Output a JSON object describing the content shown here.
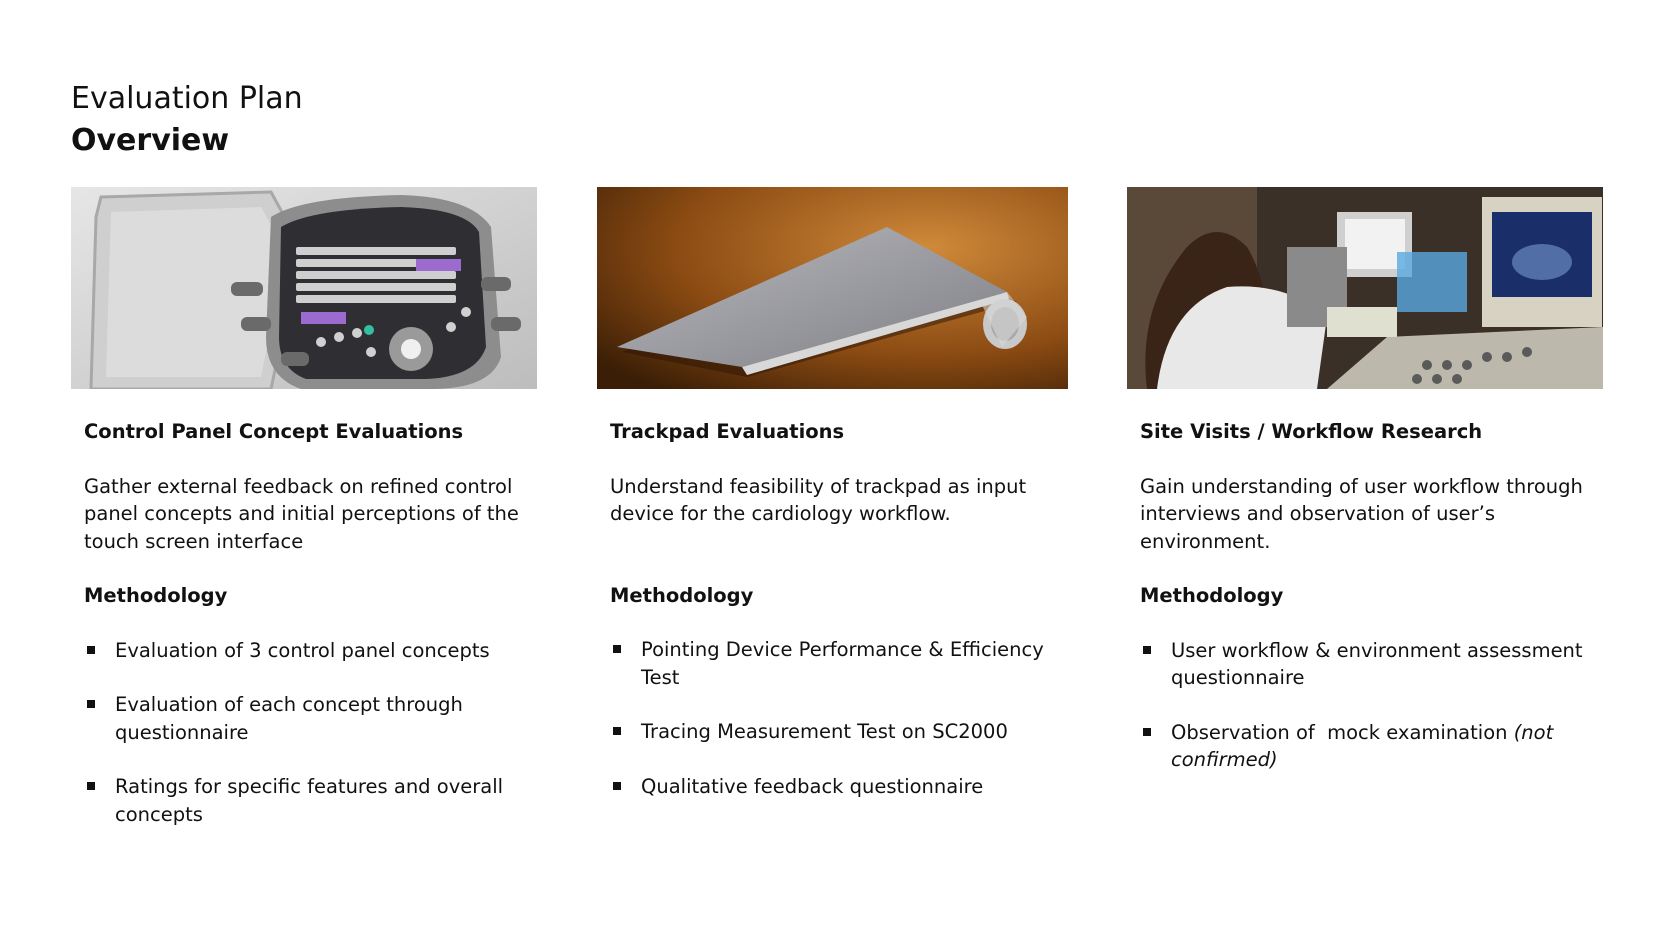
{
  "page": {
    "title": "Evaluation Plan",
    "subtitle": "Overview"
  },
  "columns": [
    {
      "image": "ultrasound-control-panel-photo",
      "heading": "Control Panel Concept Evaluations",
      "description": "Gather external feedback on refined control panel concepts and initial perceptions of the touch screen interface",
      "methodology_label": "Methodology",
      "bullets": [
        "Evaluation of 3 control panel concepts",
        "Evaluation of each concept through questionnaire",
        "Ratings for specific features and overall concepts"
      ]
    },
    {
      "image": "trackpad-photo",
      "heading": "Trackpad Evaluations",
      "description": "Understand feasibility of trackpad as input device for the cardiology workflow.",
      "methodology_label": "Methodology",
      "bullets": [
        "Pointing Device Performance & Efficiency Test",
        "Tracing Measurement Test on SC2000",
        "Qualitative feedback questionnaire"
      ]
    },
    {
      "image": "site-visit-photo",
      "heading": "Site Visits / Workflow Research",
      "description": "Gain understanding of user workflow through interviews and observation of user’s environment.",
      "methodology_label": "Methodology",
      "bullets": [
        "User workflow & environment assessment questionnaire"
      ],
      "bullet2_main": "Observation of  mock examination ",
      "bullet2_italic": "(not confirmed)"
    }
  ],
  "colors": {
    "trackpad_bg": "#8a4a12",
    "panel_bg": "#d9d9d9",
    "site_bg": "#3a3028"
  }
}
